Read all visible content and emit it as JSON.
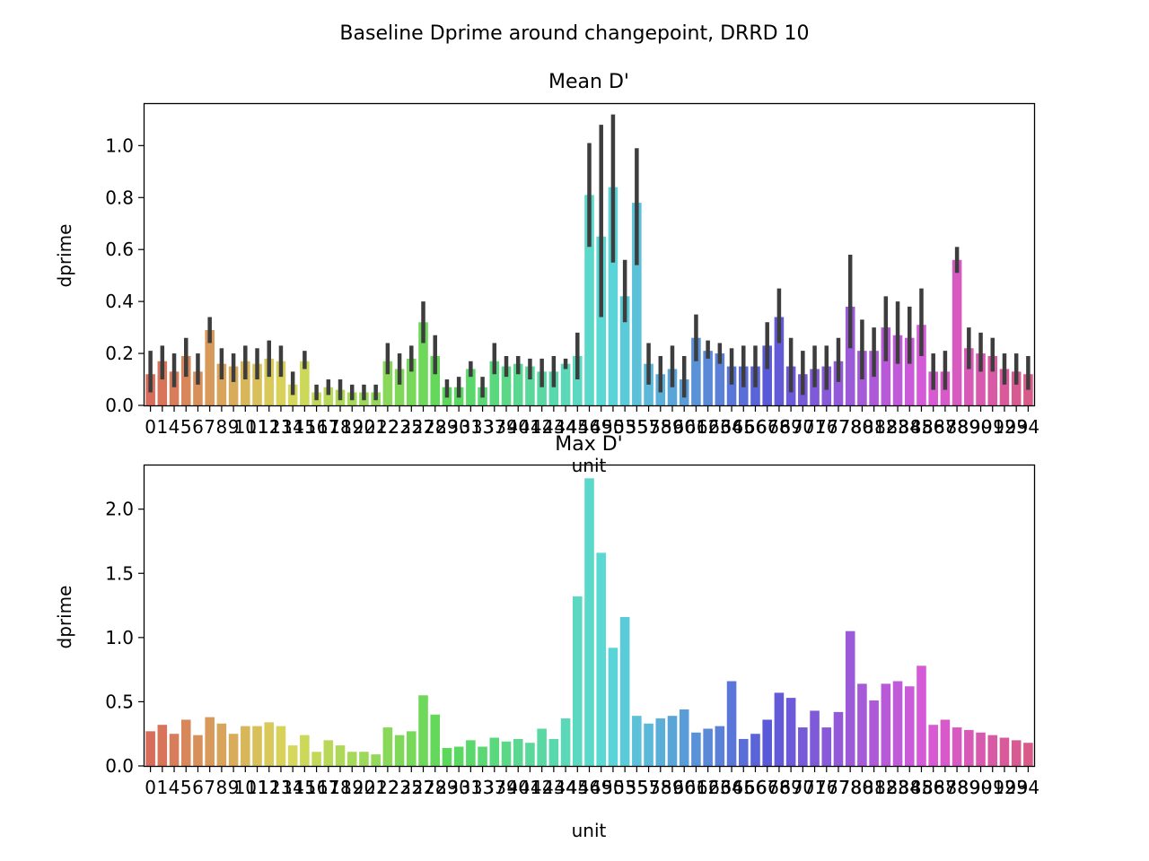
{
  "suptitle": "Baseline Dprime around changepoint, DRRD 10",
  "chart_data": [
    {
      "type": "bar",
      "title": "Mean D'",
      "xlabel": "unit",
      "ylabel": "dprime",
      "ylim": [
        0,
        1.16
      ],
      "yticks": [
        0.0,
        0.2,
        0.4,
        0.6,
        0.8,
        1.0
      ],
      "ytick_labels": [
        "0.0",
        "0.2",
        "0.4",
        "0.6",
        "0.8",
        "1.0"
      ],
      "error_bars": true,
      "categories": [
        "0",
        "1",
        "4",
        "5",
        "6",
        "7",
        "8",
        "9",
        "10",
        "11",
        "12",
        "13",
        "14",
        "15",
        "16",
        "17",
        "18",
        "19",
        "20",
        "21",
        "22",
        "23",
        "25",
        "27",
        "28",
        "29",
        "30",
        "31",
        "33",
        "37",
        "39",
        "40",
        "41",
        "42",
        "43",
        "44",
        "45",
        "46",
        "49",
        "50",
        "53",
        "55",
        "57",
        "58",
        "59",
        "60",
        "61",
        "62",
        "63",
        "64",
        "65",
        "66",
        "67",
        "68",
        "69",
        "70",
        "71",
        "76",
        "77",
        "78",
        "80",
        "81",
        "82",
        "83",
        "84",
        "85",
        "86",
        "87",
        "88",
        "89",
        "90",
        "91",
        "92",
        "93",
        "94"
      ],
      "values": [
        0.12,
        0.17,
        0.13,
        0.19,
        0.13,
        0.29,
        0.16,
        0.15,
        0.17,
        0.16,
        0.18,
        0.17,
        0.08,
        0.17,
        0.05,
        0.07,
        0.06,
        0.05,
        0.05,
        0.05,
        0.17,
        0.14,
        0.18,
        0.32,
        0.19,
        0.07,
        0.07,
        0.14,
        0.07,
        0.17,
        0.15,
        0.16,
        0.15,
        0.13,
        0.13,
        0.16,
        0.19,
        0.81,
        0.65,
        0.84,
        0.42,
        0.78,
        0.16,
        0.12,
        0.14,
        0.1,
        0.26,
        0.21,
        0.2,
        0.15,
        0.15,
        0.15,
        0.23,
        0.34,
        0.15,
        0.12,
        0.14,
        0.15,
        0.17,
        0.38,
        0.21,
        0.21,
        0.3,
        0.27,
        0.26,
        0.31,
        0.13,
        0.13,
        0.56,
        0.22,
        0.2,
        0.19,
        0.14,
        0.13,
        0.12
      ],
      "err_low": [
        0.05,
        0.1,
        0.07,
        0.11,
        0.08,
        0.24,
        0.1,
        0.09,
        0.1,
        0.1,
        0.11,
        0.11,
        0.04,
        0.14,
        0.02,
        0.04,
        0.02,
        0.02,
        0.02,
        0.02,
        0.12,
        0.08,
        0.13,
        0.24,
        0.12,
        0.03,
        0.03,
        0.11,
        0.03,
        0.12,
        0.11,
        0.12,
        0.1,
        0.07,
        0.07,
        0.14,
        0.1,
        0.61,
        0.34,
        0.55,
        0.32,
        0.54,
        0.08,
        0.05,
        0.07,
        0.03,
        0.17,
        0.18,
        0.16,
        0.08,
        0.07,
        0.07,
        0.14,
        0.24,
        0.05,
        0.04,
        0.07,
        0.06,
        0.09,
        0.22,
        0.1,
        0.11,
        0.17,
        0.16,
        0.16,
        0.19,
        0.06,
        0.06,
        0.51,
        0.14,
        0.13,
        0.13,
        0.08,
        0.08,
        0.06
      ],
      "err_high": [
        0.21,
        0.23,
        0.2,
        0.26,
        0.2,
        0.34,
        0.22,
        0.2,
        0.23,
        0.22,
        0.25,
        0.23,
        0.13,
        0.21,
        0.08,
        0.1,
        0.1,
        0.08,
        0.08,
        0.08,
        0.24,
        0.2,
        0.23,
        0.4,
        0.27,
        0.1,
        0.11,
        0.17,
        0.11,
        0.24,
        0.19,
        0.19,
        0.18,
        0.18,
        0.19,
        0.18,
        0.28,
        1.01,
        1.08,
        1.12,
        0.56,
        0.99,
        0.24,
        0.19,
        0.23,
        0.19,
        0.35,
        0.25,
        0.24,
        0.22,
        0.23,
        0.23,
        0.32,
        0.45,
        0.26,
        0.21,
        0.23,
        0.23,
        0.26,
        0.58,
        0.33,
        0.3,
        0.42,
        0.4,
        0.38,
        0.45,
        0.2,
        0.21,
        0.61,
        0.3,
        0.28,
        0.26,
        0.2,
        0.2,
        0.19
      ]
    },
    {
      "type": "bar",
      "title": "Max D'",
      "xlabel": "unit",
      "ylabel": "dprime",
      "ylim": [
        0,
        2.34
      ],
      "yticks": [
        0.0,
        0.5,
        1.0,
        1.5,
        2.0
      ],
      "ytick_labels": [
        "0.0",
        "0.5",
        "1.0",
        "1.5",
        "2.0"
      ],
      "error_bars": false,
      "categories": [
        "0",
        "1",
        "4",
        "5",
        "6",
        "7",
        "8",
        "9",
        "10",
        "11",
        "12",
        "13",
        "14",
        "15",
        "16",
        "17",
        "18",
        "19",
        "20",
        "21",
        "22",
        "23",
        "25",
        "27",
        "28",
        "29",
        "30",
        "31",
        "33",
        "37",
        "39",
        "40",
        "41",
        "42",
        "43",
        "44",
        "45",
        "46",
        "49",
        "50",
        "53",
        "55",
        "57",
        "58",
        "59",
        "60",
        "61",
        "62",
        "63",
        "64",
        "65",
        "66",
        "67",
        "68",
        "69",
        "70",
        "71",
        "76",
        "77",
        "78",
        "80",
        "81",
        "82",
        "83",
        "84",
        "85",
        "86",
        "87",
        "88",
        "89",
        "90",
        "91",
        "92",
        "93",
        "94"
      ],
      "values": [
        0.27,
        0.32,
        0.25,
        0.36,
        0.24,
        0.38,
        0.33,
        0.25,
        0.31,
        0.31,
        0.34,
        0.31,
        0.16,
        0.24,
        0.11,
        0.2,
        0.16,
        0.11,
        0.11,
        0.09,
        0.3,
        0.24,
        0.27,
        0.55,
        0.4,
        0.14,
        0.15,
        0.2,
        0.15,
        0.22,
        0.19,
        0.21,
        0.18,
        0.29,
        0.21,
        0.37,
        1.32,
        2.24,
        1.66,
        0.92,
        1.16,
        0.39,
        0.33,
        0.37,
        0.39,
        0.44,
        0.26,
        0.29,
        0.31,
        0.66,
        0.21,
        0.25,
        0.36,
        0.57,
        0.53,
        0.3,
        0.43,
        0.3,
        0.42,
        1.05,
        0.64,
        0.51,
        0.64,
        0.66,
        0.62,
        0.78,
        0.32,
        0.36,
        0.3,
        0.28,
        0.26,
        0.24,
        0.22,
        0.2,
        0.18
      ]
    }
  ]
}
